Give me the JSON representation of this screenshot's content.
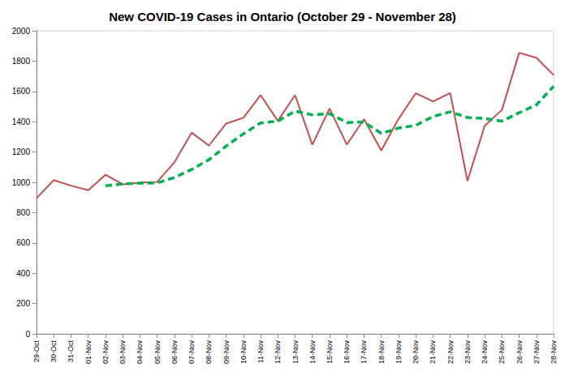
{
  "chart_data": {
    "type": "line",
    "title": "New COVID-19 Cases in Ontario (October 29 - November 28)",
    "categories": [
      "29-Oct",
      "30-Oct",
      "31-Oct",
      "01-Nov",
      "02-Nov",
      "03-Nov",
      "04-Nov",
      "05-Nov",
      "06-Nov",
      "07-Nov",
      "08-Nov",
      "09-Nov",
      "10-Nov",
      "11-Nov",
      "12-Nov",
      "13-Nov",
      "14-Nov",
      "15-Nov",
      "16-Nov",
      "17-Nov",
      "18-Nov",
      "19-Nov",
      "20-Nov",
      "21-Nov",
      "22-Nov",
      "23-Nov",
      "24-Nov",
      "25-Nov",
      "26-Nov",
      "27-Nov",
      "28-Nov"
    ],
    "series": [
      {
        "color": "#c0504d",
        "line_style": "solid",
        "values": [
          895,
          1015,
          978,
          948,
          1050,
          987,
          998,
          1003,
          1132,
          1328,
          1242,
          1388,
          1426,
          1575,
          1406,
          1575,
          1248,
          1487,
          1249,
          1417,
          1210,
          1418,
          1588,
          1534,
          1589,
          1009,
          1373,
          1478,
          1855,
          1822,
          1708
        ]
      },
      {
        "color": "#00b050",
        "line_style": "dashed",
        "values": [
          null,
          null,
          null,
          null,
          977,
          989,
          994,
          996,
          1032,
          1085,
          1149,
          1239,
          1320,
          1392,
          1403,
          1470,
          1445,
          1453,
          1395,
          1398,
          1323,
          1358,
          1376,
          1434,
          1465,
          1428,
          1422,
          1404,
          1459,
          1511,
          1634
        ]
      }
    ],
    "ylim": [
      0,
      2000
    ],
    "yticks": [
      0,
      200,
      400,
      600,
      800,
      1000,
      1200,
      1400,
      1600,
      1800,
      2000
    ],
    "grid": false
  }
}
